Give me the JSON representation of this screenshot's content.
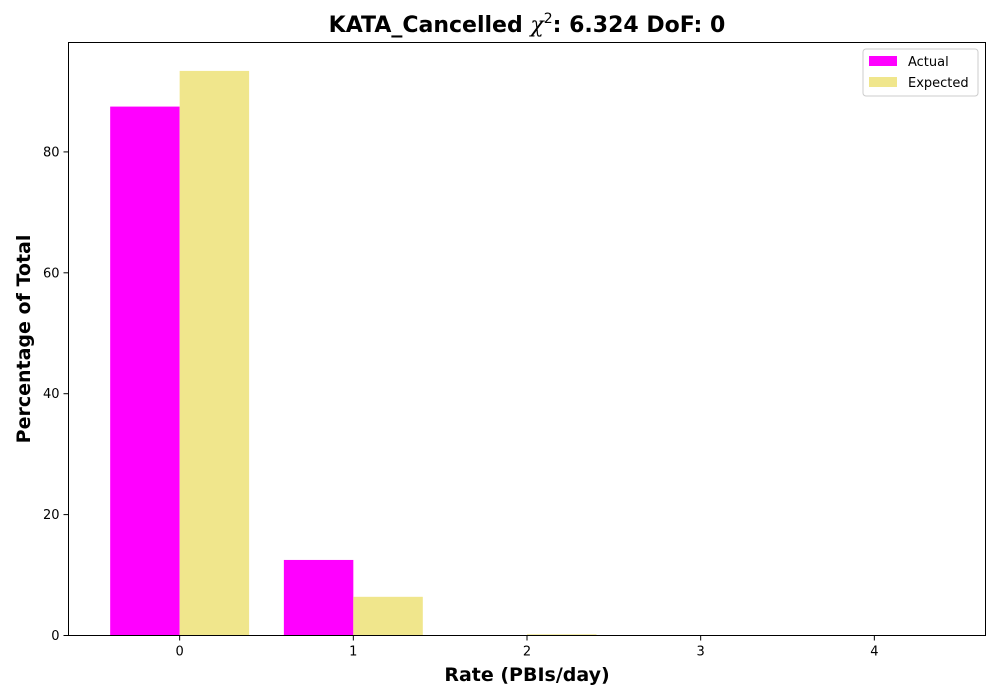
{
  "chart_data": {
    "type": "bar",
    "title": {
      "main": "KATA_Cancelled ",
      "chi_symbol": "χ",
      "chi_exponent": "2",
      "rest": ": 6.324 DoF: 0"
    },
    "xlabel": "Rate (PBIs/day)",
    "ylabel": "Percentage of Total",
    "categories": [
      "0",
      "1",
      "2",
      "3",
      "4"
    ],
    "x": [
      0,
      1,
      2,
      3,
      4
    ],
    "series": [
      {
        "name": "Actual",
        "color": "#ff00ff",
        "values": [
          87.5,
          12.5,
          0,
          0,
          0
        ]
      },
      {
        "name": "Expected",
        "color": "#f0e68c",
        "values": [
          93.4,
          6.4,
          0.2,
          0.0,
          0.0
        ]
      }
    ],
    "xlim": [
      -0.64,
      4.64
    ],
    "ylim": [
      0,
      98.1
    ],
    "yticks": [
      0,
      20,
      40,
      60,
      80
    ],
    "grid": false,
    "legend_position": "top-right"
  }
}
